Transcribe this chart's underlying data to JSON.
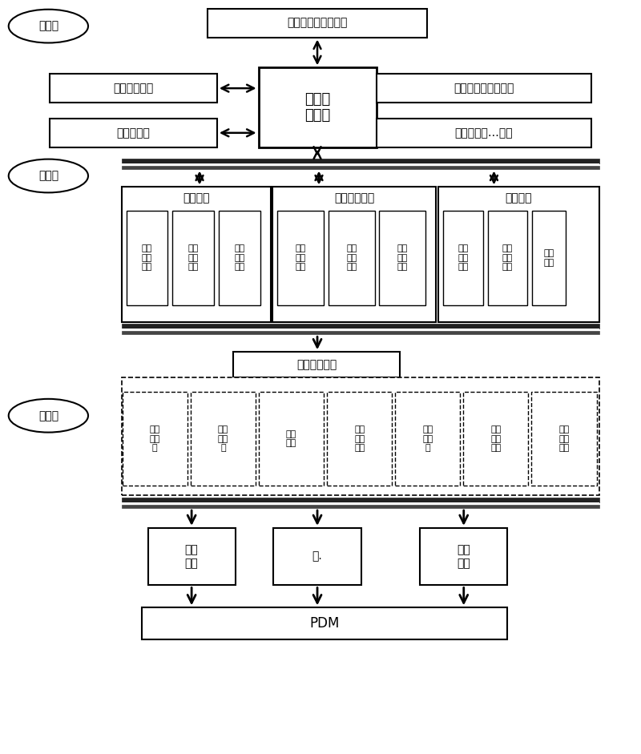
{
  "bg_color": "#ffffff",
  "layers": {
    "support": "支撑层",
    "service": "服务层",
    "application": "应用层"
  },
  "top_box": "星上产品的实体模型",
  "center_box": "本系统\n主模型",
  "left_boxes": [
    "工装实体模型",
    "模型库管理"
  ],
  "right_boxes": [
    "工具标准件实体模型",
    "模型族信息…致性"
  ],
  "service_groups": [
    {
      "title": "虚拟环境",
      "items": [
        "虚拟\n场景\n规划",
        "虚拟\n场景\n管理",
        "虚拟\n场景\n应用"
      ]
    },
    {
      "title": "装配约束关系",
      "items": [
        "装配\n路径\n筛选",
        "装配\n过程\n记录",
        "工装\n工具\n应用"
      ]
    },
    {
      "title": "干涉检测",
      "items": [
        "静态\n干涉\n检测",
        "动态\n干涉\n检测",
        "干涉\n报警"
      ]
    }
  ],
  "assembly_sim": "装配过程仿真",
  "app_items": [
    "产品\n结构\n树",
    "装配\n顺序\n树",
    "工序\n目录",
    "装配\n路径\n规划",
    "可视\n化工\n艺",
    "质量\n安全\n措施",
    "工序\n配套\n信息"
  ],
  "output_boxes": [
    "设计\n更改",
    "工.",
    "现场\n示教"
  ],
  "pdm_box": "PDM"
}
